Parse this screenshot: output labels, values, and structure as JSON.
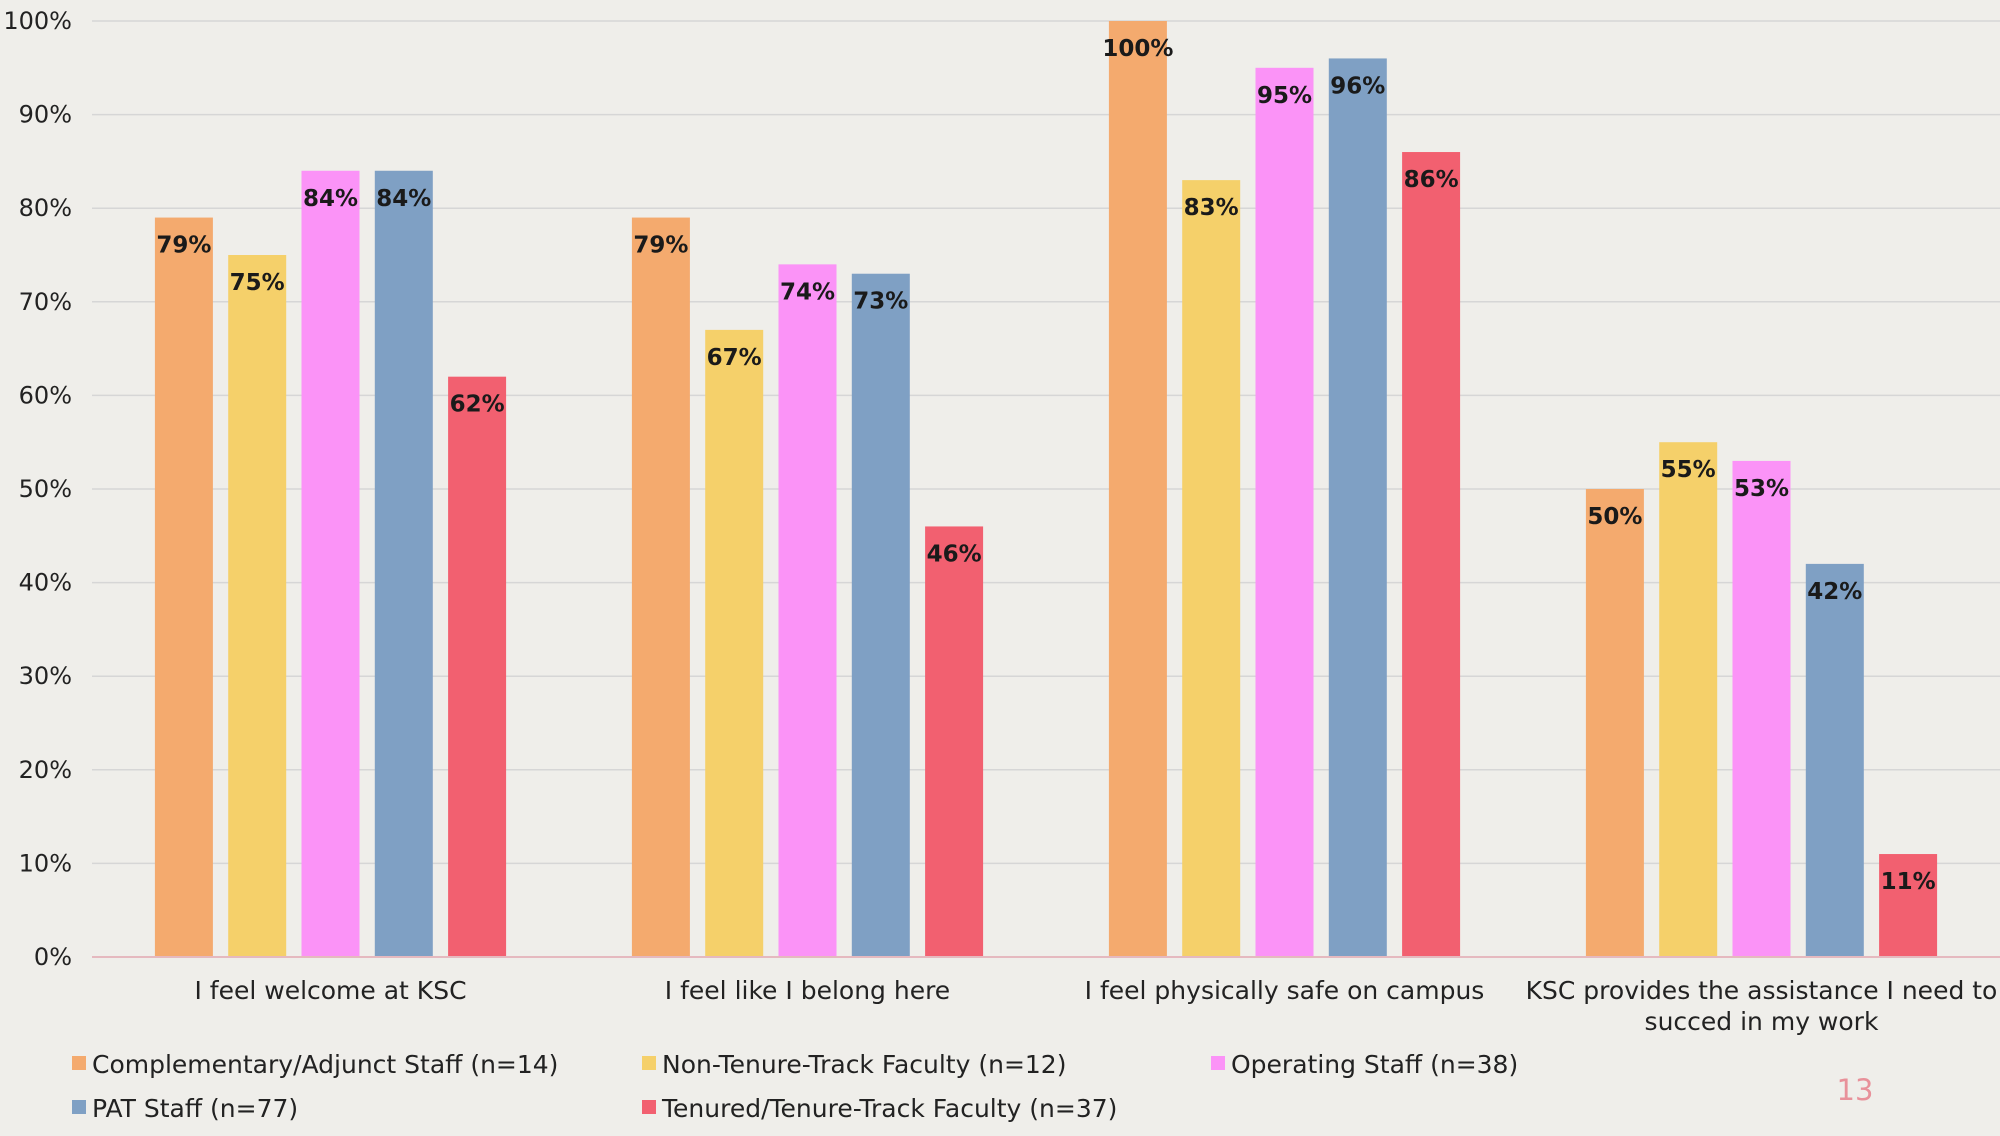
{
  "colors": {
    "background": "#efeeea",
    "grid": "#d6d6d6",
    "baseline": "#e5b9bf",
    "page_number": "#e8919a"
  },
  "page_number": "13",
  "chart_data": {
    "type": "bar",
    "title": "",
    "xlabel": "",
    "ylabel": "",
    "ylim": [
      0,
      100
    ],
    "y_unit": "%",
    "y_ticks": [
      "0%",
      "10%",
      "20%",
      "30%",
      "40%",
      "50%",
      "60%",
      "70%",
      "80%",
      "90%",
      "100%"
    ],
    "grid": true,
    "legend_position": "bottom",
    "categories": [
      [
        "I feel welcome at KSC"
      ],
      [
        "I feel like I belong here"
      ],
      [
        "I feel physically safe on campus"
      ],
      [
        "KSC provides the assistance I need to",
        "succed in my work"
      ]
    ],
    "series": [
      {
        "name": "Complementary/Adjunct Staff (n=14)",
        "color": "#f4aa6e",
        "values": [
          79,
          79,
          100,
          50
        ]
      },
      {
        "name": "Non-Tenure-Track Faculty (n=12)",
        "color": "#f5d06a",
        "values": [
          75,
          67,
          83,
          55
        ]
      },
      {
        "name": "Operating Staff (n=38)",
        "color": "#fb93f7",
        "values": [
          84,
          74,
          95,
          53
        ]
      },
      {
        "name": "PAT Staff (n=77)",
        "color": "#7fa0c4",
        "values": [
          84,
          73,
          96,
          42
        ]
      },
      {
        "name": "Tenured/Tenure-Track Faculty (n=37)",
        "color": "#f26070",
        "values": [
          62,
          46,
          86,
          11
        ]
      }
    ]
  }
}
